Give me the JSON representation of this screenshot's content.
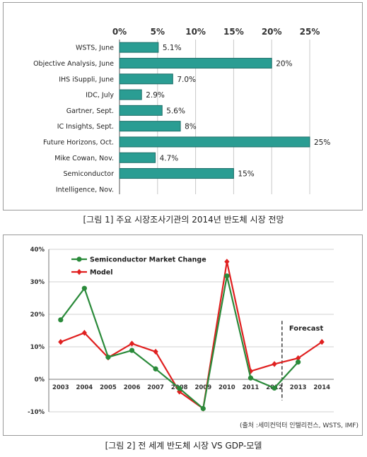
{
  "chart_data": [
    {
      "type": "bar",
      "orientation": "horizontal",
      "categories": [
        "WSTS, June",
        "Objective Analysis, June",
        "IHS iSuppli, June",
        "IDC, July",
        "Gartner, Sept.",
        "IC Insights, Sept.",
        "Future Horizons, Oct.",
        "Mike Cowan, Nov.",
        "Semiconductor",
        "Intelligence, Nov."
      ],
      "values": [
        5.1,
        20,
        7.0,
        2.9,
        5.6,
        8,
        25,
        4.7,
        15,
        null
      ],
      "data_labels": [
        "5.1%",
        "20%",
        "7.0%",
        "2.9%",
        "5.6%",
        "8%",
        "25%",
        "4.7%",
        "15%",
        ""
      ],
      "xlim": [
        0,
        25
      ],
      "xticks": [
        "0%",
        "5%",
        "10%",
        "15%",
        "20%",
        "25%"
      ],
      "tick_values": [
        0,
        5,
        10,
        15,
        20,
        25
      ],
      "axis_position": "top",
      "grid": true,
      "bar_color": "#2a9d93",
      "bar_edge": "#1c6e68",
      "caption": "[그림 1] 주요 시장조사기관의 2014년 반도체 시장 전망"
    },
    {
      "type": "line",
      "x": [
        "2003",
        "2004",
        "2005",
        "2006",
        "2007",
        "2008",
        "2009",
        "2010",
        "2011",
        "2012",
        "2013",
        "2014"
      ],
      "series": [
        {
          "name": "Semiconductor Market Change",
          "color": "#2a8a3a",
          "marker": "circle",
          "values": [
            18.3,
            28,
            6.8,
            8.9,
            3.2,
            -2.8,
            -9,
            31.8,
            0.4,
            -2.7,
            5.3,
            null
          ]
        },
        {
          "name": "Model",
          "color": "#e02020",
          "marker": "diamond",
          "values": [
            11.5,
            14.3,
            6.7,
            11,
            8.5,
            -3.8,
            -9,
            36.2,
            2.5,
            4.7,
            6.5,
            11.5
          ]
        }
      ],
      "ylim": [
        -10,
        40
      ],
      "yticks": [
        "40%",
        "30%",
        "20%",
        "10%",
        "0%",
        "-10%"
      ],
      "ytick_values": [
        40,
        30,
        20,
        10,
        0,
        -10
      ],
      "grid": true,
      "legend_position": "top-left",
      "annotation": "Forecast",
      "forecast_after": "2012",
      "source": "(출처 :세미컨덕터 인텔리전스, WSTS, IMF)",
      "caption": "[그림 2] 전 세계 반도체 시장 VS GDP-모델"
    }
  ]
}
